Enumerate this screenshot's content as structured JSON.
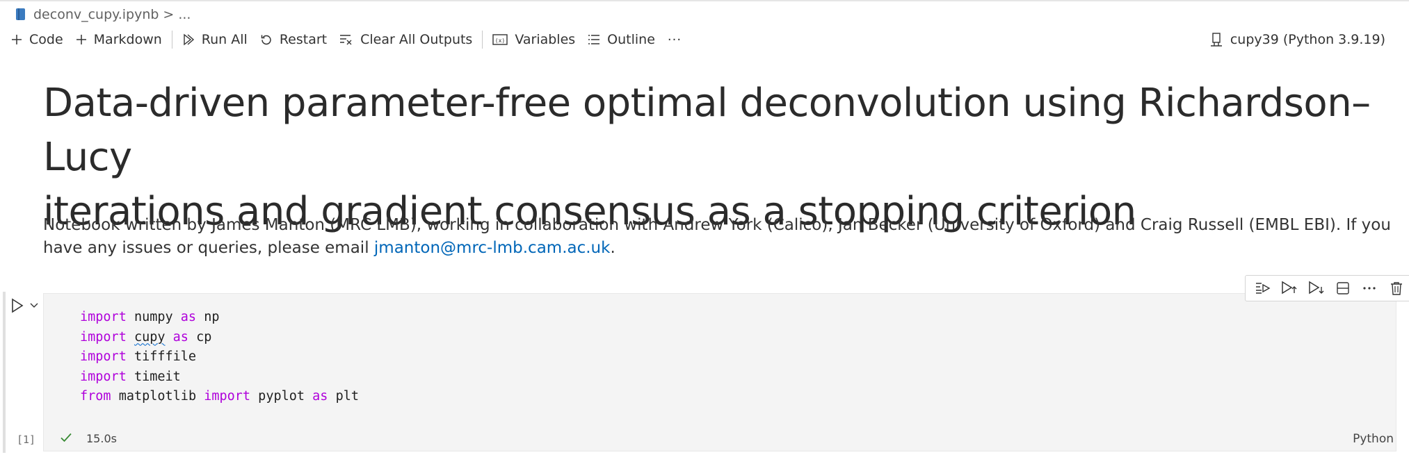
{
  "breadcrumb": {
    "file": "deconv_cupy.ipynb",
    "separator": ">",
    "more": "..."
  },
  "toolbar": {
    "code_label": "Code",
    "markdown_label": "Markdown",
    "run_all_label": "Run All",
    "restart_label": "Restart",
    "clear_label": "Clear All Outputs",
    "variables_label": "Variables",
    "outline_label": "Outline",
    "more_label": "···"
  },
  "kernel": {
    "label": "cupy39 (Python 3.9.19)"
  },
  "markdown": {
    "title_line1": "Data-driven parameter-free optimal deconvolution using Richardson–Lucy",
    "title_line2": "iterations and gradient consensus as a stopping criterion",
    "para_text": "Notebook written by James Manton (MRC LMB), working in collaboration with Andrew York (Calico), Jan Becker (University of Oxford) and Craig Russell (EMBL EBI). If you have any issues or queries, please email ",
    "para_link": "jmanton@mrc-lmb.cam.ac.uk",
    "para_end": "."
  },
  "code_cell": {
    "lines": [
      {
        "kw1": "import",
        "t1": " numpy ",
        "kw2": "as",
        "t2": " np"
      },
      {
        "kw1": "import",
        "t1": " ",
        "mod": "cupy",
        "t2": " ",
        "kw2": "as",
        "t3": " cp"
      },
      {
        "kw1": "import",
        "t1": " tifffile"
      },
      {
        "kw1": "import",
        "t1": " timeit"
      },
      {
        "kw1": "from",
        "t1": " matplotlib ",
        "kw2": "import",
        "t2": " pyplot ",
        "kw3": "as",
        "t3": " plt"
      }
    ],
    "execution_count": "[1]",
    "exec_time": "15.0s",
    "language": "Python"
  },
  "colors": {
    "keyword": "#af00db",
    "link": "#0066b8",
    "success": "#388a34",
    "editor_bg": "#f4f4f4"
  },
  "icons": [
    "file-icon",
    "add-code-icon",
    "add-markdown-icon",
    "run-all-icon",
    "restart-icon",
    "clear-outputs-icon",
    "variables-icon",
    "outline-icon",
    "kernel-icon",
    "run-cell-icon",
    "chevron-down-icon",
    "execute-above-icon",
    "execute-below-icon",
    "split-cell-icon",
    "more-icon",
    "delete-icon",
    "check-icon"
  ]
}
